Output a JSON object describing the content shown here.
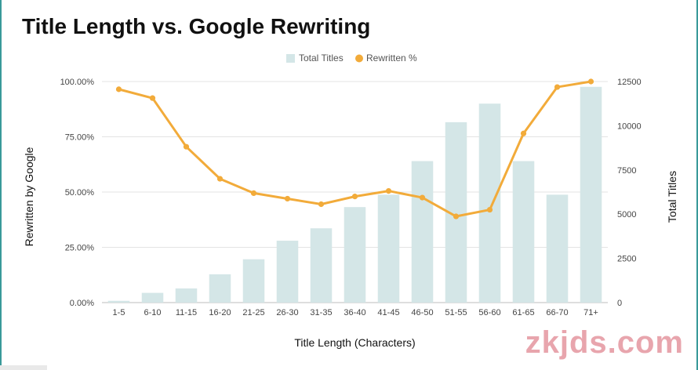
{
  "page": {
    "title": "Title Length vs. Google Rewriting",
    "watermark": "zkjds.com"
  },
  "colors": {
    "bar": "#d4e6e7",
    "line": "#f2ab3a",
    "grid": "#e3e3e3",
    "axis": "#bdbdbd"
  },
  "chart_data": {
    "type": "bar",
    "title": "Title Length vs. Google Rewriting",
    "xlabel": "Title Length (Characters)",
    "ylabel": "Rewritten by Google",
    "y2label": "Total Titles",
    "categories": [
      "1-5",
      "6-10",
      "11-15",
      "16-20",
      "21-25",
      "26-30",
      "31-35",
      "36-40",
      "41-45",
      "46-50",
      "51-55",
      "56-60",
      "61-65",
      "66-70",
      "71+"
    ],
    "series": [
      {
        "name": "Total Titles",
        "type": "bar",
        "axis": "right",
        "values": [
          100,
          550,
          800,
          1600,
          2450,
          3500,
          4200,
          5400,
          6100,
          8000,
          10200,
          11250,
          8000,
          6100,
          12200
        ]
      },
      {
        "name": "Rewritten %",
        "type": "line",
        "axis": "left",
        "values": [
          96.5,
          92.5,
          70.5,
          56.0,
          49.5,
          47.0,
          44.5,
          48.0,
          50.5,
          47.5,
          39.0,
          42.0,
          76.5,
          97.5,
          100.0
        ]
      }
    ],
    "ylim": [
      0,
      100
    ],
    "y2lim": [
      0,
      12500
    ],
    "yticks": [
      "0.00%",
      "25.00%",
      "50.00%",
      "75.00%",
      "100.00%"
    ],
    "y2ticks": [
      "0",
      "2500",
      "5000",
      "7500",
      "10000",
      "12500"
    ],
    "legend": {
      "placement": "top-center",
      "items": [
        "Total Titles",
        "Rewritten %"
      ]
    },
    "grid": true
  }
}
